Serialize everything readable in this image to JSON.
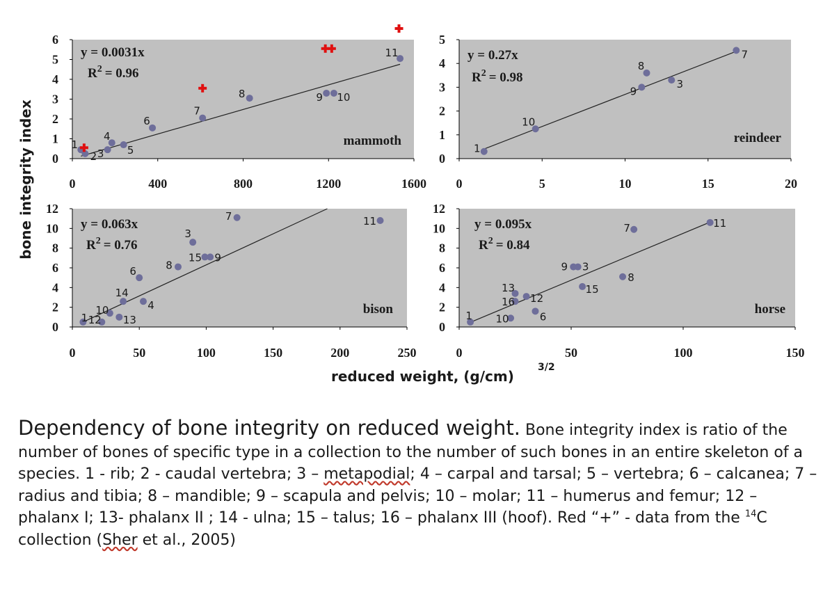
{
  "figure": {
    "ylabel": "bone integrity index",
    "xlabel": "reduced weight, (g/cm)",
    "xlabel_sup": "3/2"
  },
  "chart_data": [
    {
      "type": "scatter",
      "name": "mammoth",
      "label": "mammoth",
      "equation": "y = 0.0031x",
      "r2_prefix": "R",
      "r2_sup": "2",
      "r2_value": "= 0.96",
      "xlim": [
        0,
        1600
      ],
      "ylim": [
        0,
        6
      ],
      "xticks": [
        "0",
        "400",
        "800",
        "1200",
        "1600"
      ],
      "yticks": [
        "0",
        "1",
        "2",
        "3",
        "4",
        "5",
        "6"
      ],
      "slope": 0.0031,
      "points": [
        {
          "label": "1",
          "x": 40,
          "y": 0.45
        },
        {
          "label": "2",
          "x": 60,
          "y": 0.25
        },
        {
          "label": "3",
          "x": 165,
          "y": 0.45
        },
        {
          "label": "4",
          "x": 185,
          "y": 0.8
        },
        {
          "label": "5",
          "x": 240,
          "y": 0.7
        },
        {
          "label": "6",
          "x": 375,
          "y": 1.55
        },
        {
          "label": "7",
          "x": 610,
          "y": 2.05
        },
        {
          "label": "8",
          "x": 830,
          "y": 3.05
        },
        {
          "label": "9",
          "x": 1190,
          "y": 3.3
        },
        {
          "label": "10",
          "x": 1225,
          "y": 3.3
        },
        {
          "label": "11",
          "x": 1535,
          "y": 5.05
        }
      ],
      "red_plus": [
        {
          "x": 55,
          "y": 0.55
        },
        {
          "x": 610,
          "y": 3.55
        },
        {
          "x": 1185,
          "y": 5.55
        },
        {
          "x": 1215,
          "y": 5.55
        },
        {
          "x": 1530,
          "y": 6.6
        }
      ]
    },
    {
      "type": "scatter",
      "name": "reindeer",
      "label": "reindeer",
      "equation": "y = 0.27x",
      "r2_prefix": "R",
      "r2_sup": "2",
      "r2_value": "= 0.98",
      "xlim": [
        0,
        20
      ],
      "ylim": [
        0,
        5
      ],
      "xticks": [
        "0",
        "5",
        "10",
        "15",
        "20"
      ],
      "yticks": [
        "0",
        "1",
        "2",
        "3",
        "4",
        "5"
      ],
      "slope": 0.27,
      "points": [
        {
          "label": "1",
          "x": 1.5,
          "y": 0.3
        },
        {
          "label": "10",
          "x": 4.6,
          "y": 1.25
        },
        {
          "label": "9",
          "x": 11.0,
          "y": 3.0
        },
        {
          "label": "8",
          "x": 11.3,
          "y": 3.6
        },
        {
          "label": "3",
          "x": 12.8,
          "y": 3.3
        },
        {
          "label": "7",
          "x": 16.7,
          "y": 4.55
        }
      ],
      "red_plus": []
    },
    {
      "type": "scatter",
      "name": "bison",
      "label": "bison",
      "equation": "y = 0.063x",
      "r2_prefix": "R",
      "r2_sup": "2",
      "r2_value": "= 0.76",
      "xlim": [
        0,
        250
      ],
      "ylim": [
        0,
        12
      ],
      "xticks": [
        "0",
        "50",
        "100",
        "150",
        "200",
        "250"
      ],
      "yticks": [
        "0",
        "2",
        "4",
        "6",
        "8",
        "10",
        "12"
      ],
      "slope": 0.063,
      "points": [
        {
          "label": "1",
          "x": 8,
          "y": 0.5
        },
        {
          "label": "12",
          "x": 22,
          "y": 0.5
        },
        {
          "label": "13",
          "x": 35,
          "y": 1.0
        },
        {
          "label": "10",
          "x": 28,
          "y": 1.4
        },
        {
          "label": "14",
          "x": 38,
          "y": 2.6
        },
        {
          "label": "4",
          "x": 53,
          "y": 2.6
        },
        {
          "label": "6",
          "x": 50,
          "y": 5.0
        },
        {
          "label": "8",
          "x": 79,
          "y": 6.1
        },
        {
          "label": "15",
          "x": 99,
          "y": 7.1
        },
        {
          "label": "9",
          "x": 103,
          "y": 7.1
        },
        {
          "label": "3",
          "x": 90,
          "y": 8.6
        },
        {
          "label": "7",
          "x": 123,
          "y": 11.1
        },
        {
          "label": "11",
          "x": 230,
          "y": 10.8
        }
      ],
      "red_plus": []
    },
    {
      "type": "scatter",
      "name": "horse",
      "label": "horse",
      "equation": "y = 0.095x",
      "r2_prefix": "R",
      "r2_sup": "2",
      "r2_value": "= 0.84",
      "xlim": [
        0,
        150
      ],
      "ylim": [
        0,
        12
      ],
      "xticks": [
        "0",
        "50",
        "100",
        "150"
      ],
      "yticks": [
        "0",
        "2",
        "4",
        "6",
        "8",
        "10",
        "12"
      ],
      "slope": 0.095,
      "points": [
        {
          "label": "1",
          "x": 5,
          "y": 0.5
        },
        {
          "label": "10",
          "x": 23,
          "y": 0.9
        },
        {
          "label": "16",
          "x": 25,
          "y": 2.6
        },
        {
          "label": "13",
          "x": 25,
          "y": 3.4
        },
        {
          "label": "12",
          "x": 30,
          "y": 3.1
        },
        {
          "label": "6",
          "x": 34,
          "y": 1.6
        },
        {
          "label": "9",
          "x": 51,
          "y": 6.1
        },
        {
          "label": "3",
          "x": 53,
          "y": 6.1
        },
        {
          "label": "15",
          "x": 55,
          "y": 4.1
        },
        {
          "label": "8",
          "x": 73,
          "y": 5.1
        },
        {
          "label": "7",
          "x": 78,
          "y": 9.9
        },
        {
          "label": "11",
          "x": 112,
          "y": 10.6
        }
      ],
      "red_plus": []
    }
  ],
  "caption": {
    "title": "Dependency of bone integrity on reduced weight.",
    "text_1": " Bone integrity index is ratio of the number of bones of specific type in a collection   to the number of such bones in an entire skeleton of a species. 1 - rib; 2 - caudal vertebra; 3 – ",
    "metapodial": "metapodial",
    "text_2": ";  4 – carpal and tarsal; 5 – vertebra; 6 – calcanea; 7 – radius and tibia; 8 – mandible; 9 – scapula and pelvis; 10 – molar; 11 – humerus and femur; 12 – phalanx I; 13- phalanx II ; 14 - ulna; 15 – talus; 16 – phalanx III (hoof). Red “+” - data from the ",
    "iso": "14",
    "text_3": "C  collection (",
    "sher": "Sher",
    "text_4": " et al., 2005)"
  },
  "colors": {
    "plot_bg": "#c0c0c0",
    "marker": "#6e6e9a",
    "red_plus": "#e01010",
    "line": "#222222",
    "text": "#1a1a1a"
  }
}
